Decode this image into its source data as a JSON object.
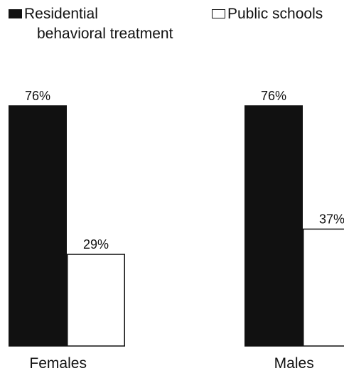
{
  "chart_data": {
    "type": "bar",
    "categories": [
      "Females",
      "Males"
    ],
    "series": [
      {
        "name": "Residential behavioral treatment",
        "values": [
          76,
          76
        ],
        "labels": [
          "76%",
          "76%"
        ],
        "color": "#111111"
      },
      {
        "name": "Public schools",
        "values": [
          29,
          37
        ],
        "labels": [
          "29%",
          "37%"
        ],
        "color": "#ffffff"
      }
    ],
    "title": "",
    "xlabel": "",
    "ylabel": "",
    "ylim": [
      0,
      76
    ],
    "grid": false,
    "legend": "top",
    "value_unit": "%"
  },
  "legend": {
    "residential_line1": "Residential",
    "residential_line2": "behavioral treatment",
    "public": "Public schools"
  }
}
